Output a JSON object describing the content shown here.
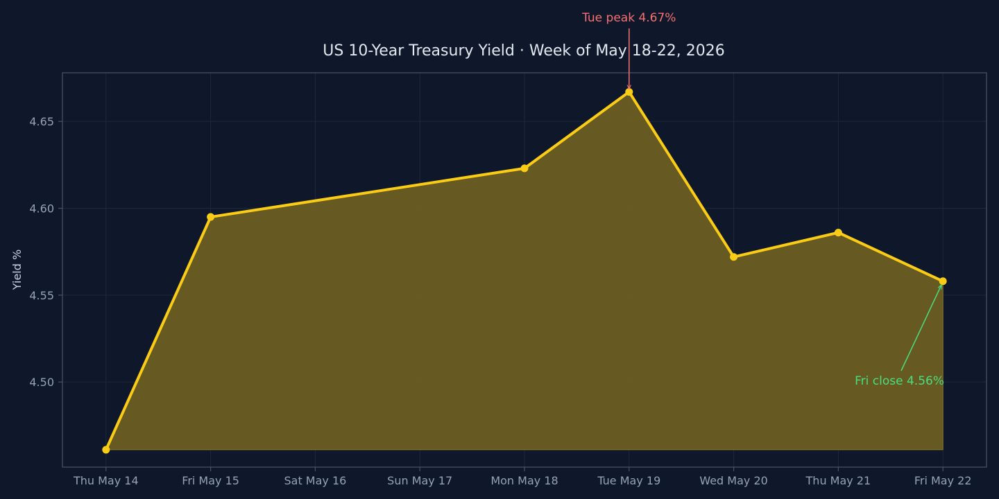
{
  "chart_data": {
    "type": "area",
    "title": "US 10-Year Treasury Yield · Week of May 18-22, 2026",
    "xlabel": "",
    "ylabel": "Yield %",
    "x": [
      "2026-05-14",
      "2026-05-15",
      "2026-05-18",
      "2026-05-19",
      "2026-05-20",
      "2026-05-21",
      "2026-05-22"
    ],
    "x_ticks": [
      "2026-05-14",
      "2026-05-15",
      "2026-05-16",
      "2026-05-17",
      "2026-05-18",
      "2026-05-19",
      "2026-05-20",
      "2026-05-21",
      "2026-05-22"
    ],
    "x_tick_labels": [
      "Thu May 14",
      "Fri May 15",
      "Sat May 16",
      "Sun May 17",
      "Mon May 18",
      "Tue May 19",
      "Wed May 20",
      "Thu May 21",
      "Fri May 22"
    ],
    "values": [
      4.461,
      4.595,
      4.623,
      4.667,
      4.572,
      4.586,
      4.558
    ],
    "xlim": [
      "2026-05-13T14:00",
      "2026-05-22T10:00"
    ],
    "ylim": [
      4.451,
      4.678
    ],
    "y_ticks": [
      4.5,
      4.55,
      4.6,
      4.65
    ],
    "y_tick_labels": [
      "4.50",
      "4.55",
      "4.60",
      "4.65"
    ],
    "fill_baseline": 4.461,
    "grid": true,
    "legend": "none",
    "annotations": [
      {
        "text": "Tue peak 4.67%",
        "x": "2026-05-19",
        "y": 4.667,
        "color": "#f87171"
      },
      {
        "text": "Fri close 4.56%",
        "x": "2026-05-22",
        "y": 4.558,
        "color": "#4ade80"
      }
    ],
    "colors": {
      "background": "#0f172a",
      "line": "#facc15",
      "fill": "#6b5e22",
      "grid": "#1e293b",
      "frame": "#475569"
    }
  }
}
